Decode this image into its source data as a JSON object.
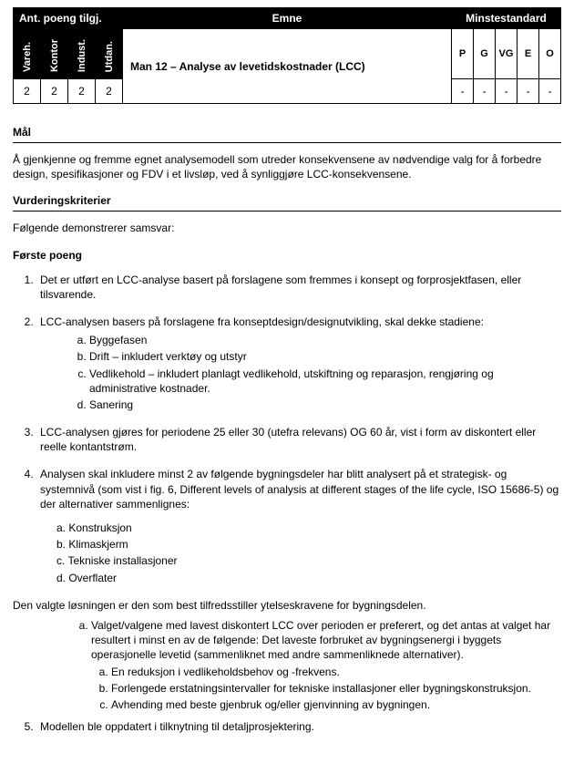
{
  "header": {
    "pointsLabel": "Ant. poeng tilgj.",
    "emneLabel": "Emne",
    "minstestandardLabel": "Minstestandard",
    "cols": [
      "Vareh.",
      "Kontor",
      "Indust.",
      "Utdan."
    ],
    "msCols": [
      "P",
      "G",
      "VG",
      "E",
      "O"
    ],
    "emneTitle": "Man 12 – Analyse av levetidskostnader (LCC)",
    "points": [
      "2",
      "2",
      "2",
      "2"
    ],
    "msVals": [
      "-",
      "-",
      "-",
      "-",
      "-"
    ]
  },
  "sections": {
    "malTitle": "Mål",
    "malBody": "Å gjenkjenne og fremme egnet analysemodell som utreder konsekvensene av nødvendige valg for å forbedre design, spesifikasjoner og FDV i et livsløp, ved å synliggjøre LCC-konsekvensene.",
    "vkTitle": "Vurderingskriterier",
    "vkIntro": "Følgende demonstrerer samsvar:",
    "fpTitle": "Første poeng",
    "item1": "Det er utført en LCC-analyse basert på forslagene som fremmes i konsept og forprosjektfasen, eller tilsvarende.",
    "item2": "LCC-analysen basers på forslagene fra konseptdesign/designutvikling, skal dekke stadiene:",
    "item2a": "Byggefasen",
    "item2b": "Drift – inkludert verktøy og utstyr",
    "item2c": "Vedlikehold – inkludert planlagt vedlikehold, utskiftning og reparasjon, rengjøring og administrative kostnader.",
    "item2d": "Sanering",
    "item3": "LCC-analysen gjøres for periodene 25 eller 30 (utefra relevans) OG 60 år, vist i form av diskontert eller reelle kontantstrøm.",
    "item4": "Analysen skal inkludere minst 2 av følgende bygningsdeler har blitt analysert på et strategisk- og systemnivå (som vist i fig. 6, Different levels of analysis at different stages of the life cycle, ISO 15686-5) og der alternativer sammenlignes:",
    "item4a": "a. Konstruksjon",
    "item4b": "b. Klimaskjerm",
    "item4c": "c. Tekniske installasjoner",
    "item4d": "d. Overflater",
    "chosen": "Den valgte løsningen er den som best tilfredsstiller ytelseskravene for bygningsdelen.",
    "chosenA": "Valget/valgene med lavest diskontert LCC over perioden er preferert, og det antas at valget har resultert i minst en av de følgende: Det laveste forbruket av bygningsenergi i byggets operasjonelle levetid (sammenliknet med andre sammenliknede alternativer).",
    "chosenA1": "En reduksjon i vedlikeholdsbehov og -frekvens.",
    "chosenA2": "Forlengede erstatningsintervaller for tekniske installasjoner eller bygningskonstruksjon.",
    "chosenA3": "Avhending med beste gjenbruk og/eller gjenvinning av bygningen.",
    "item5": "Modellen ble oppdatert i tilknytning til detaljprosjektering."
  }
}
